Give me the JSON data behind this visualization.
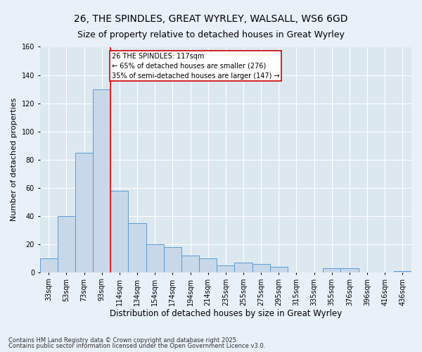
{
  "title": "26, THE SPINDLES, GREAT WYRLEY, WALSALL, WS6 6GD",
  "subtitle": "Size of property relative to detached houses in Great Wyrley",
  "xlabel": "Distribution of detached houses by size in Great Wyrley",
  "ylabel": "Number of detached properties",
  "categories": [
    "33sqm",
    "53sqm",
    "73sqm",
    "93sqm",
    "114sqm",
    "134sqm",
    "154sqm",
    "174sqm",
    "194sqm",
    "214sqm",
    "235sqm",
    "255sqm",
    "275sqm",
    "295sqm",
    "315sqm",
    "335sqm",
    "355sqm",
    "376sqm",
    "396sqm",
    "416sqm",
    "436sqm"
  ],
  "values": [
    10,
    40,
    85,
    130,
    58,
    35,
    20,
    18,
    12,
    10,
    5,
    7,
    6,
    4,
    0,
    0,
    3,
    3,
    0,
    0,
    1
  ],
  "bar_color": "#c8d8e8",
  "bar_edge_color": "#5b9bd5",
  "red_line_index": 4,
  "annotation_text": "26 THE SPINDLES: 117sqm\n← 65% of detached houses are smaller (276)\n35% of semi-detached houses are larger (147) →",
  "annotation_box_color": "#ffffff",
  "annotation_box_edge": "#cc0000",
  "ylim": [
    0,
    160
  ],
  "yticks": [
    0,
    20,
    40,
    60,
    80,
    100,
    120,
    140,
    160
  ],
  "plot_background": "#dce8f0",
  "fig_background": "#e8f0f8",
  "footer_line1": "Contains HM Land Registry data © Crown copyright and database right 2025.",
  "footer_line2": "Contains public sector information licensed under the Open Government Licence v3.0.",
  "title_fontsize": 10,
  "subtitle_fontsize": 9,
  "ylabel_fontsize": 8,
  "xlabel_fontsize": 8.5,
  "tick_fontsize": 7,
  "annotation_fontsize": 7,
  "footer_fontsize": 6
}
